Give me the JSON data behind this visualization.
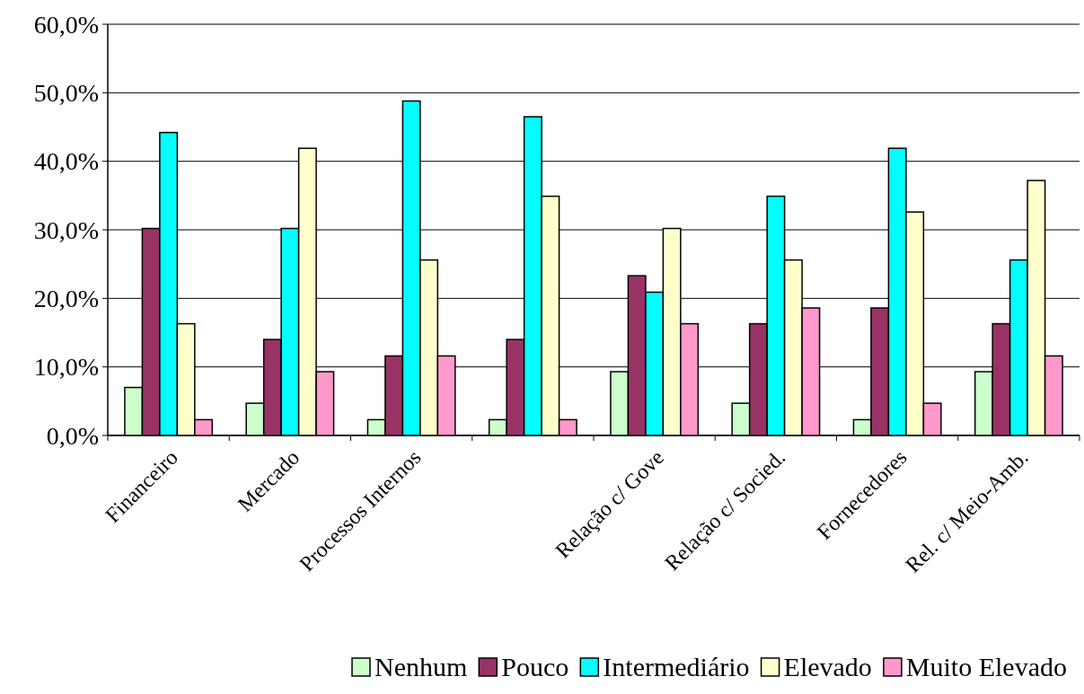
{
  "chart_data": {
    "type": "bar",
    "categories": [
      "Financeiro",
      "Mercado",
      "Processos Internos",
      null,
      "Relação c/ Gove",
      "Relação c/ Socied.",
      "Fornecedores",
      "Rel. c/ Meio-Amb."
    ],
    "series": [
      {
        "name": "Nenhum",
        "color": "#ccffcc",
        "values": [
          7.0,
          4.7,
          2.3,
          2.3,
          9.3,
          4.7,
          2.3,
          9.3
        ]
      },
      {
        "name": "Pouco",
        "color": "#993366",
        "values": [
          30.2,
          14.0,
          11.6,
          14.0,
          23.3,
          16.3,
          18.6,
          16.3
        ]
      },
      {
        "name": "Intermediário",
        "color": "#00ffff",
        "values": [
          44.2,
          30.2,
          48.8,
          46.5,
          20.9,
          34.9,
          41.9,
          25.6
        ]
      },
      {
        "name": "Elevado",
        "color": "#ffffcc",
        "values": [
          16.3,
          41.9,
          25.6,
          34.9,
          30.2,
          25.6,
          32.6,
          37.2
        ]
      },
      {
        "name": "Muito Elevado",
        "color": "#ff99cc",
        "values": [
          2.3,
          9.3,
          11.6,
          2.3,
          16.3,
          18.6,
          4.7,
          11.6
        ]
      }
    ],
    "ylim": [
      0,
      60
    ],
    "yticks": [
      {
        "value": 0,
        "label": "0,0%"
      },
      {
        "value": 10,
        "label": "10,0%"
      },
      {
        "value": 20,
        "label": "20,0%"
      },
      {
        "value": 30,
        "label": "30,0%"
      },
      {
        "value": 40,
        "label": "40,0%"
      },
      {
        "value": 50,
        "label": "50,0%"
      },
      {
        "value": 60,
        "label": "60,0%"
      }
    ],
    "grid": "y",
    "legend": "bottom"
  }
}
